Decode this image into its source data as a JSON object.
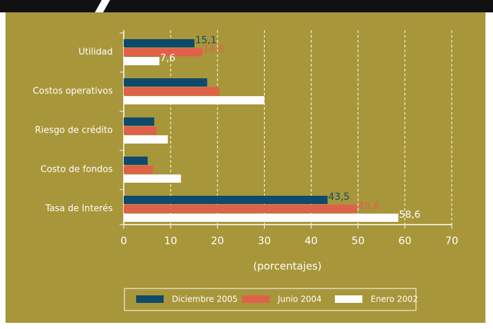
{
  "chart_data": {
    "type": "hbar",
    "categories": [
      "Utilidad",
      "Costos operativos",
      "Riesgo de crédito",
      "Costo de fondos",
      "Tasa de Interés"
    ],
    "series": [
      {
        "name": "Diciembre 2005",
        "color": "#0e4a6c",
        "values": [
          15.1,
          17.8,
          6.5,
          5.1,
          43.5
        ],
        "value_labels": [
          "15,1",
          null,
          null,
          null,
          "43,5"
        ]
      },
      {
        "name": "Junio 2004",
        "color": "#e0614a",
        "values": [
          16.8,
          20.4,
          7.0,
          6.2,
          49.8
        ],
        "value_labels": [
          "16,8",
          null,
          null,
          null,
          "49,8"
        ]
      },
      {
        "name": "Enero 2002",
        "color": "#ffffff",
        "values": [
          7.6,
          30.0,
          9.4,
          12.2,
          58.6
        ],
        "value_labels": [
          "7,6",
          null,
          null,
          null,
          "58,6"
        ]
      }
    ],
    "xlim": [
      0,
      70
    ],
    "xticks": [
      0,
      10,
      20,
      30,
      40,
      50,
      60,
      70
    ],
    "xlabel": "(porcentajes)",
    "grid": true
  }
}
